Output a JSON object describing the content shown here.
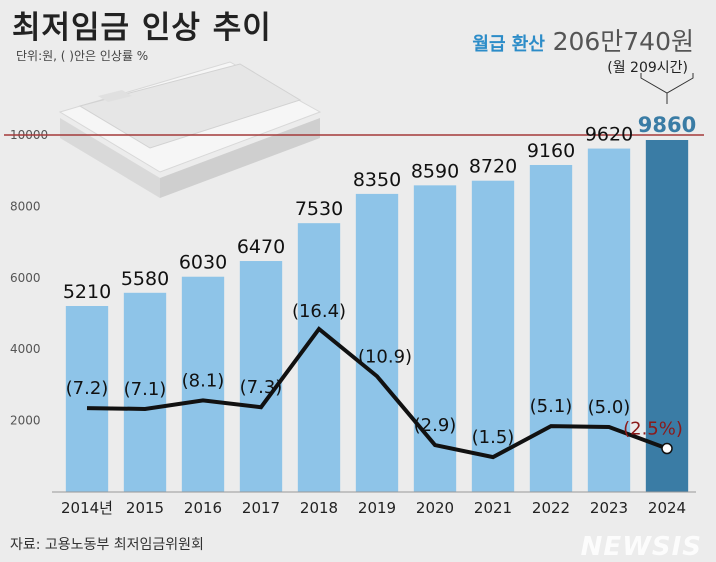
{
  "header": {
    "title": "최저임금 인상 추이",
    "unit_note": "단위:원, ( )안은 인상률 %",
    "monthly_label": "월급 환산",
    "monthly_value": "206만740원",
    "monthly_hours": "(월 209시간)"
  },
  "footer": {
    "source": "자료: 고용노동부 최저임금위원회",
    "watermark": "NEWSIS"
  },
  "colors": {
    "bar": "#8ec4e8",
    "bar_highlight": "#3a7ca5",
    "line": "#111111",
    "highlight_text": "#8b1a1a",
    "ref_line": "#a33a3a",
    "accent": "#2c8cc8"
  },
  "chart_data": {
    "type": "bar",
    "categories": [
      "2014년",
      "2015",
      "2016",
      "2017",
      "2018",
      "2019",
      "2020",
      "2021",
      "2022",
      "2023",
      "2024"
    ],
    "values": [
      5210,
      5580,
      6030,
      6470,
      7530,
      8350,
      8590,
      8720,
      9160,
      9620,
      9860
    ],
    "value_labels": [
      "5210",
      "5580",
      "6030",
      "6470",
      "7530",
      "8350",
      "8590",
      "8720",
      "9160",
      "9620",
      "9860"
    ],
    "growth_rates": [
      7.2,
      7.1,
      8.1,
      7.3,
      16.4,
      10.9,
      2.9,
      1.5,
      5.1,
      5.0,
      2.5
    ],
    "growth_labels": [
      "(7.2)",
      "(7.1)",
      "(8.1)",
      "(7.3)",
      "(16.4)",
      "(10.9)",
      "(2.9)",
      "(1.5)",
      "(5.1)",
      "(5.0)",
      "(2.5%)"
    ],
    "highlight_index": 10,
    "yticks": [
      2000,
      4000,
      6000,
      8000,
      10000
    ],
    "ytick_labels": [
      "2000",
      "4000",
      "6000",
      "8000",
      "10000"
    ],
    "reference_value": 10000,
    "ylim": [
      0,
      10000
    ],
    "rate_lim": [
      0,
      20
    ],
    "grid": false
  }
}
